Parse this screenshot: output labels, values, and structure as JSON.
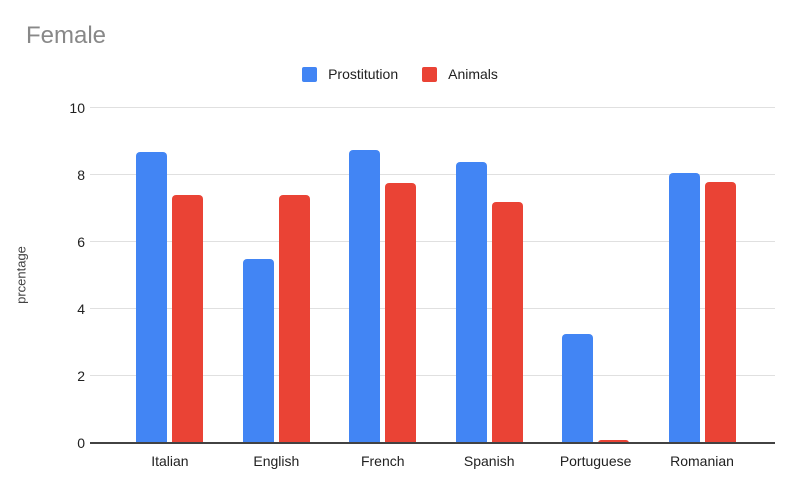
{
  "chart_data": {
    "type": "bar",
    "title": "Female",
    "xlabel": "",
    "ylabel": "prcentage",
    "categories": [
      "Italian",
      "English",
      "French",
      "Spanish",
      "Portuguese",
      "Romanian"
    ],
    "series": [
      {
        "name": "Prostitution",
        "color": "#4285F4",
        "values": [
          8.7,
          5.5,
          8.75,
          8.4,
          3.25,
          8.05
        ]
      },
      {
        "name": "Animals",
        "color": "#EA4335",
        "values": [
          7.4,
          7.4,
          7.75,
          7.2,
          0.08,
          7.8
        ]
      }
    ],
    "ylim": [
      0,
      10
    ],
    "yticks": [
      0,
      2,
      4,
      6,
      8,
      10
    ],
    "grid": true,
    "legend_position": "top"
  },
  "colors": {
    "title_text": "#888888",
    "gridline": "#e0e0e0",
    "axis_line": "#424242",
    "label_text": "#212121"
  }
}
